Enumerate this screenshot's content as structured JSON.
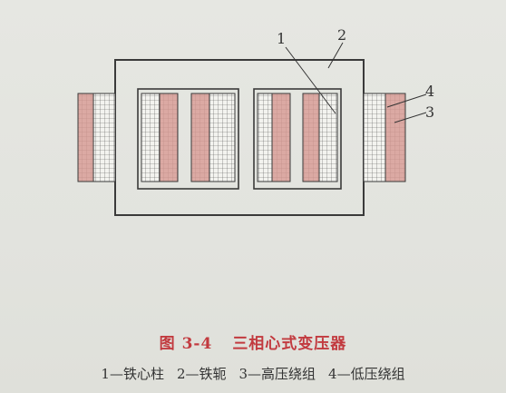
{
  "figure": {
    "number": "图 3-4",
    "title": "三相心式变压器"
  },
  "legend": [
    "1—铁心柱",
    "2—铁轭",
    "3—高压绕组",
    "4—低压绕组"
  ],
  "callouts": {
    "core_limb": "1",
    "yoke": "2",
    "hv_winding": "3",
    "lv_winding": "4"
  },
  "colors": {
    "outline": "#3a3a3a",
    "hv_fill": "#f2f2ee",
    "lv_fill": "#d9a6a1",
    "caption": "#c23a3f"
  }
}
